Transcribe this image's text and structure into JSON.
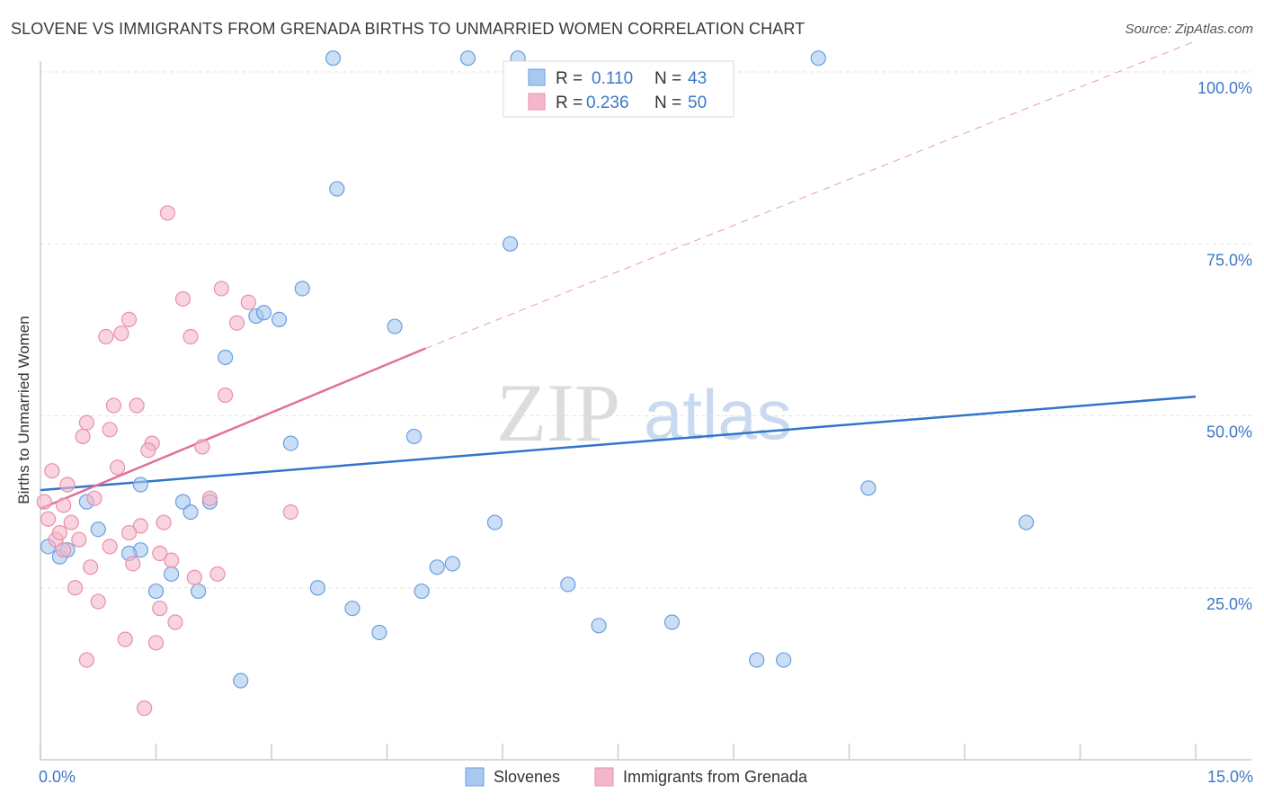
{
  "title": "SLOVENE VS IMMIGRANTS FROM GRENADA BIRTHS TO UNMARRIED WOMEN CORRELATION CHART",
  "source": "Source: ZipAtlas.com",
  "watermark": {
    "zip": "ZIP",
    "atlas": "atlas"
  },
  "chart_data": {
    "type": "scatter",
    "xlabel": "",
    "ylabel": "Births to Unmarried Women",
    "xlim": [
      0,
      15
    ],
    "ylim": [
      0,
      100
    ],
    "x_ticks": [
      0,
      1.5,
      3,
      4.5,
      6,
      7.5,
      9,
      10.5,
      12,
      13.5,
      15
    ],
    "x_tick_labels": [
      {
        "value": 0,
        "label": "0.0%"
      },
      {
        "value": 15,
        "label": "15.0%"
      }
    ],
    "y_tick_labels": [
      {
        "value": 25,
        "label": "25.0%"
      },
      {
        "value": 50,
        "label": "50.0%"
      },
      {
        "value": 75,
        "label": "75.0%"
      },
      {
        "value": 100,
        "label": "100.0%"
      }
    ],
    "legend_top": [
      {
        "series": "Slovenes",
        "r_label": "R =",
        "r": "0.110",
        "n_label": "N =",
        "n": "43",
        "color": "#a7c8ef"
      },
      {
        "series": "Immigrants from Grenada",
        "r_label": "R =",
        "r": "0.236",
        "n_label": "N =",
        "n": "50",
        "color": "#f5b6c9"
      }
    ],
    "series": [
      {
        "name": "Slovenes",
        "color": "#a7c8ef",
        "edge": "#6a9fde",
        "line_color": "#3275c8",
        "trend": {
          "x0": 0,
          "y0": 39.2,
          "x1": 15,
          "y1": 52.8
        },
        "points": [
          [
            0.1,
            31
          ],
          [
            0.25,
            29.5
          ],
          [
            0.35,
            30.5
          ],
          [
            0.6,
            37.5
          ],
          [
            0.75,
            33.5
          ],
          [
            1.3,
            30.5
          ],
          [
            1.15,
            30
          ],
          [
            1.3,
            40
          ],
          [
            1.5,
            24.5
          ],
          [
            1.7,
            27
          ],
          [
            1.85,
            37.5
          ],
          [
            1.95,
            36
          ],
          [
            2.05,
            24.5
          ],
          [
            2.2,
            37.5
          ],
          [
            2.4,
            58.5
          ],
          [
            2.6,
            11.5
          ],
          [
            2.8,
            64.5
          ],
          [
            2.9,
            65
          ],
          [
            3.1,
            64
          ],
          [
            3.25,
            46
          ],
          [
            3.4,
            68.5
          ],
          [
            3.6,
            25
          ],
          [
            3.8,
            102
          ],
          [
            3.85,
            83
          ],
          [
            4.05,
            22
          ],
          [
            4.4,
            18.5
          ],
          [
            4.6,
            63
          ],
          [
            4.85,
            47
          ],
          [
            4.95,
            24.5
          ],
          [
            5.15,
            28
          ],
          [
            5.35,
            28.5
          ],
          [
            5.55,
            102
          ],
          [
            5.9,
            34.5
          ],
          [
            6.2,
            102
          ],
          [
            6.1,
            75
          ],
          [
            6.85,
            25.5
          ],
          [
            7.25,
            19.5
          ],
          [
            8.2,
            20
          ],
          [
            9.3,
            14.5
          ],
          [
            9.65,
            14.5
          ],
          [
            10.1,
            102
          ],
          [
            10.75,
            39.5
          ],
          [
            12.8,
            34.5
          ]
        ]
      },
      {
        "name": "Immigrants from Grenada",
        "color": "#f5b6c9",
        "edge": "#e890ab",
        "line_color": "#e0709a",
        "trend": {
          "x0": 0,
          "y0": 36.5,
          "x1": 5.0,
          "y1": 59.8
        },
        "trend_dashed": {
          "x0": 5.0,
          "y0": 59.8,
          "x1": 15,
          "y1": 104.5
        },
        "points": [
          [
            0.05,
            37.5
          ],
          [
            0.1,
            35
          ],
          [
            0.15,
            42
          ],
          [
            0.2,
            32
          ],
          [
            0.3,
            37
          ],
          [
            0.35,
            40
          ],
          [
            0.4,
            34.5
          ],
          [
            0.45,
            25
          ],
          [
            0.5,
            32
          ],
          [
            0.55,
            47
          ],
          [
            0.6,
            49
          ],
          [
            0.65,
            28
          ],
          [
            0.7,
            38
          ],
          [
            0.75,
            23
          ],
          [
            0.85,
            61.5
          ],
          [
            0.9,
            48
          ],
          [
            0.95,
            51.5
          ],
          [
            1.0,
            42.5
          ],
          [
            1.05,
            62
          ],
          [
            1.1,
            17.5
          ],
          [
            1.15,
            64
          ],
          [
            1.2,
            28.5
          ],
          [
            1.25,
            51.5
          ],
          [
            1.3,
            34
          ],
          [
            1.35,
            7.5
          ],
          [
            1.45,
            46
          ],
          [
            1.5,
            17
          ],
          [
            1.55,
            22
          ],
          [
            1.6,
            34.5
          ],
          [
            1.65,
            79.5
          ],
          [
            1.7,
            29
          ],
          [
            1.75,
            20
          ],
          [
            1.85,
            67
          ],
          [
            1.95,
            61.5
          ],
          [
            2.0,
            26.5
          ],
          [
            2.1,
            45.5
          ],
          [
            2.2,
            38
          ],
          [
            2.3,
            27
          ],
          [
            2.35,
            68.5
          ],
          [
            2.4,
            53
          ],
          [
            2.55,
            63.5
          ],
          [
            2.7,
            66.5
          ],
          [
            3.25,
            36
          ],
          [
            0.25,
            33
          ],
          [
            0.6,
            14.5
          ],
          [
            0.9,
            31
          ],
          [
            1.15,
            33
          ],
          [
            1.4,
            45
          ],
          [
            1.55,
            30
          ],
          [
            0.3,
            30.5
          ]
        ]
      }
    ],
    "bottom_legend": [
      "Slovenes",
      "Immigrants from Grenada"
    ]
  }
}
